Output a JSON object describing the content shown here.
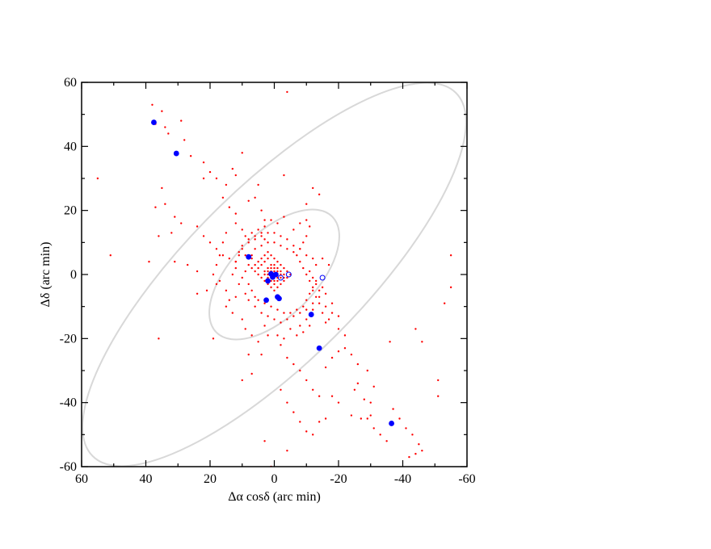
{
  "chart_data": {
    "type": "scatter",
    "xlabel": "Δα cosδ (arc min)",
    "ylabel": "Δδ (arc min)",
    "xlim": [
      60,
      -60
    ],
    "ylim": [
      -60,
      60
    ],
    "x_reversed": true,
    "x_ticks": [
      "60",
      "40",
      "20",
      "0",
      "-20",
      "-40",
      "-60"
    ],
    "y_ticks": [
      "60",
      "40",
      "20",
      "0",
      "-20",
      "-40",
      "-60"
    ],
    "ellipses": [
      {
        "cx": 0,
        "cy": 0,
        "a": 80,
        "b": 27,
        "angle_deg": 45,
        "color": "#d8d8d8"
      },
      {
        "cx": 0,
        "cy": 0,
        "a": 25.5,
        "b": 13,
        "angle_deg": 45,
        "color": "#d8d8d8"
      }
    ],
    "series": [
      {
        "marker": "dot",
        "color": "#ff0000",
        "points": [
          [
            38,
            53
          ],
          [
            35,
            51
          ],
          [
            37,
            47
          ],
          [
            34,
            46
          ],
          [
            33,
            44
          ],
          [
            29,
            48
          ],
          [
            28,
            42
          ],
          [
            26,
            37
          ],
          [
            22,
            35
          ],
          [
            20,
            32
          ],
          [
            22,
            30
          ],
          [
            18,
            30
          ],
          [
            15,
            28
          ],
          [
            13,
            33
          ],
          [
            12,
            31
          ],
          [
            10,
            38
          ],
          [
            16,
            24
          ],
          [
            14,
            21
          ],
          [
            12,
            19
          ],
          [
            8,
            23
          ],
          [
            6,
            24
          ],
          [
            5,
            28
          ],
          [
            4,
            20
          ],
          [
            3,
            17
          ],
          [
            -3,
            31
          ],
          [
            -12,
            27
          ],
          [
            -14,
            25
          ],
          [
            -4,
            57
          ],
          [
            35,
            27
          ],
          [
            34,
            22
          ],
          [
            37,
            21
          ],
          [
            31,
            18
          ],
          [
            29,
            16
          ],
          [
            32,
            13
          ],
          [
            36,
            12
          ],
          [
            24,
            15
          ],
          [
            22,
            12
          ],
          [
            20,
            10
          ],
          [
            18,
            8
          ],
          [
            16,
            6
          ],
          [
            14,
            5
          ],
          [
            12,
            4
          ],
          [
            10,
            9
          ],
          [
            8,
            11
          ],
          [
            6,
            12
          ],
          [
            4,
            13
          ],
          [
            3,
            11
          ],
          [
            12,
            16
          ],
          [
            10,
            14
          ],
          [
            15,
            13
          ],
          [
            11,
            7
          ],
          [
            9,
            6
          ],
          [
            7,
            5
          ],
          [
            55,
            30
          ],
          [
            51,
            6
          ],
          [
            39,
            4
          ],
          [
            31,
            4
          ],
          [
            27,
            3
          ],
          [
            24,
            1
          ],
          [
            36,
            -20
          ],
          [
            24,
            -6
          ],
          [
            21,
            -5
          ],
          [
            18,
            -3
          ],
          [
            19,
            -20
          ],
          [
            15,
            -10
          ],
          [
            13,
            -12
          ],
          [
            10,
            -14
          ],
          [
            9,
            -17
          ],
          [
            7,
            -19
          ],
          [
            5,
            -21
          ],
          [
            4,
            -25
          ],
          [
            3,
            -16
          ],
          [
            2,
            -19
          ],
          [
            8,
            -25
          ],
          [
            10,
            -33
          ],
          [
            7,
            -31
          ],
          [
            -2,
            -22
          ],
          [
            -4,
            -26
          ],
          [
            -6,
            -28
          ],
          [
            -8,
            -30
          ],
          [
            -10,
            -33
          ],
          [
            -12,
            -36
          ],
          [
            -14,
            -38
          ],
          [
            -16,
            -29
          ],
          [
            -18,
            -26
          ],
          [
            -20,
            -24
          ],
          [
            -22,
            -23
          ],
          [
            -24,
            -25
          ],
          [
            -26,
            -34
          ],
          [
            -28,
            -39
          ],
          [
            -30,
            -44
          ],
          [
            -31,
            -48
          ],
          [
            -33,
            -50
          ],
          [
            -35,
            -52
          ],
          [
            -37,
            -42
          ],
          [
            -39,
            -45
          ],
          [
            -41,
            -48
          ],
          [
            -43,
            -50
          ],
          [
            -45,
            -53
          ],
          [
            -46,
            -55
          ],
          [
            -44,
            -56
          ],
          [
            -42,
            -57
          ],
          [
            -16,
            -45
          ],
          [
            -20,
            -40
          ],
          [
            -24,
            -44
          ],
          [
            -27,
            -45
          ],
          [
            -29,
            -45
          ],
          [
            -30,
            -40
          ],
          [
            -25,
            -36
          ],
          [
            -18,
            -38
          ],
          [
            -14,
            -46
          ],
          [
            -12,
            -50
          ],
          [
            -10,
            -49
          ],
          [
            -8,
            -46
          ],
          [
            -6,
            -43
          ],
          [
            -4,
            -40
          ],
          [
            -2,
            -36
          ],
          [
            3,
            -52
          ],
          [
            1,
            -60
          ],
          [
            -4,
            -55
          ],
          [
            -55,
            6
          ],
          [
            -55,
            -4
          ],
          [
            -53,
            -9
          ],
          [
            -51,
            -33
          ],
          [
            -51,
            -38
          ],
          [
            -46,
            -21
          ],
          [
            -44,
            -17
          ],
          [
            -36,
            -21
          ],
          [
            -31,
            -35
          ],
          [
            -29,
            -30
          ],
          [
            -26,
            -28
          ],
          [
            -22,
            -19
          ],
          [
            -20,
            -13
          ],
          [
            -18,
            -9
          ],
          [
            -16,
            -6
          ],
          [
            -14,
            -7
          ],
          [
            -12,
            -11
          ],
          [
            -10,
            -14
          ],
          [
            -8,
            -16
          ],
          [
            -10,
            22
          ],
          [
            -11,
            15
          ],
          [
            -10,
            12
          ],
          [
            -9,
            10
          ],
          [
            -8,
            8
          ],
          [
            -15,
            5
          ],
          [
            -17,
            3
          ],
          [
            -13,
            -2
          ],
          [
            -15,
            -4
          ],
          [
            -12,
            -5
          ],
          [
            -14,
            -9
          ],
          [
            -16,
            -15
          ],
          [
            -20,
            -17
          ],
          [
            5,
            2
          ],
          [
            4,
            3
          ],
          [
            3,
            4
          ],
          [
            2,
            5
          ],
          [
            1,
            6
          ],
          [
            0,
            5
          ],
          [
            -1,
            4
          ],
          [
            -2,
            3
          ],
          [
            -3,
            2
          ],
          [
            -4,
            1
          ],
          [
            -5,
            0
          ],
          [
            -4,
            -1
          ],
          [
            -3,
            -2
          ],
          [
            -2,
            -3
          ],
          [
            -1,
            -4
          ],
          [
            0,
            -5
          ],
          [
            1,
            -4
          ],
          [
            2,
            -3
          ],
          [
            3,
            -2
          ],
          [
            4,
            -1
          ],
          [
            5,
            0
          ],
          [
            6,
            1
          ],
          [
            7,
            2
          ],
          [
            6,
            3
          ],
          [
            5,
            4
          ],
          [
            4,
            5
          ],
          [
            3,
            6
          ],
          [
            2,
            7
          ],
          [
            1,
            3
          ],
          [
            0,
            2
          ],
          [
            -1,
            1
          ],
          [
            0,
            0
          ],
          [
            1,
            1
          ],
          [
            2,
            2
          ],
          [
            1,
            -1
          ],
          [
            -1,
            -1
          ],
          [
            0,
            -2
          ],
          [
            2,
            0
          ],
          [
            -2,
            0
          ],
          [
            3,
            1
          ],
          [
            -3,
            -1
          ],
          [
            1,
            2
          ],
          [
            -1,
            2
          ],
          [
            2,
            -1
          ],
          [
            -2,
            1
          ],
          [
            0,
            3
          ],
          [
            0,
            -3
          ],
          [
            3,
            0
          ],
          [
            -3,
            0
          ],
          [
            1,
            0
          ],
          [
            -1,
            0
          ],
          [
            0,
            1
          ],
          [
            0,
            -1
          ],
          [
            2,
            1
          ],
          [
            -2,
            -1
          ],
          [
            1,
            -2
          ],
          [
            -1,
            -2
          ],
          [
            8,
            3
          ],
          [
            9,
            1
          ],
          [
            10,
            -1
          ],
          [
            8,
            -3
          ],
          [
            7,
            -5
          ],
          [
            6,
            -7
          ],
          [
            5,
            -8
          ],
          [
            3,
            -9
          ],
          [
            1,
            -10
          ],
          [
            -1,
            -11
          ],
          [
            -3,
            -12
          ],
          [
            -5,
            -12
          ],
          [
            -7,
            -11
          ],
          [
            -9,
            -10
          ],
          [
            -10,
            -8
          ],
          [
            -11,
            -6
          ],
          [
            -12,
            -4
          ],
          [
            -11,
            -2
          ],
          [
            -10,
            0
          ],
          [
            -9,
            2
          ],
          [
            -8,
            4
          ],
          [
            -7,
            6
          ],
          [
            -6,
            7
          ],
          [
            -4,
            8
          ],
          [
            -2,
            9
          ],
          [
            0,
            10
          ],
          [
            2,
            10
          ],
          [
            4,
            9
          ],
          [
            6,
            8
          ],
          [
            7,
            6
          ],
          [
            12,
            2
          ],
          [
            13,
            0
          ],
          [
            11,
            -3
          ],
          [
            9,
            -6
          ],
          [
            8,
            -8
          ],
          [
            6,
            -10
          ],
          [
            4,
            -12
          ],
          [
            2,
            -13
          ],
          [
            0,
            -14
          ],
          [
            -2,
            -15
          ],
          [
            -4,
            -14
          ],
          [
            -6,
            -13
          ],
          [
            -8,
            -12
          ],
          [
            -10,
            -11
          ],
          [
            -12,
            -9
          ],
          [
            -13,
            -7
          ],
          [
            -14,
            -5
          ],
          [
            -13,
            -3
          ],
          [
            -12,
            -1
          ],
          [
            -11,
            1
          ],
          [
            -13,
            3
          ],
          [
            -12,
            5
          ],
          [
            -10,
            6
          ],
          [
            -8,
            8
          ],
          [
            -6,
            9
          ],
          [
            -4,
            11
          ],
          [
            -2,
            12
          ],
          [
            0,
            13
          ],
          [
            2,
            13
          ],
          [
            4,
            12
          ],
          [
            6,
            11
          ],
          [
            8,
            10
          ],
          [
            10,
            8
          ],
          [
            11,
            6
          ],
          [
            12,
            4
          ],
          [
            16,
            10
          ],
          [
            17,
            6
          ],
          [
            18,
            3
          ],
          [
            19,
            0
          ],
          [
            17,
            -2
          ],
          [
            15,
            -5
          ],
          [
            14,
            -8
          ],
          [
            12,
            -7
          ],
          [
            -6,
            14
          ],
          [
            -8,
            16
          ],
          [
            -10,
            17
          ],
          [
            -3,
            18
          ],
          [
            -1,
            16
          ],
          [
            1,
            17
          ],
          [
            3,
            15
          ],
          [
            5,
            14
          ],
          [
            7,
            13
          ],
          [
            9,
            12
          ],
          [
            -16,
            -10
          ],
          [
            -18,
            -12
          ],
          [
            -17,
            -14
          ],
          [
            -15,
            -12
          ],
          [
            -5,
            -17
          ],
          [
            -7,
            -19
          ],
          [
            -9,
            -18
          ],
          [
            -11,
            -16
          ],
          [
            -3,
            -20
          ],
          [
            -1,
            -19
          ]
        ]
      },
      {
        "marker": "filled-circle",
        "color": "#0000ff",
        "points": [
          [
            37.5,
            47.5
          ],
          [
            30.5,
            37.8
          ],
          [
            8,
            5.5
          ],
          [
            1,
            0.2
          ],
          [
            -0.5,
            0
          ],
          [
            2,
            -2
          ],
          [
            0.5,
            -0.8
          ],
          [
            -1,
            -7
          ],
          [
            -1.5,
            -7.5
          ],
          [
            2.5,
            -8
          ],
          [
            -11.5,
            -12.5
          ],
          [
            -14,
            -23
          ],
          [
            -36.5,
            -46.5
          ]
        ]
      },
      {
        "marker": "open-circle",
        "color": "#0000ff",
        "points": [
          [
            -15,
            -1
          ],
          [
            -4.5,
            0
          ],
          [
            -2,
            -1
          ]
        ]
      }
    ]
  }
}
